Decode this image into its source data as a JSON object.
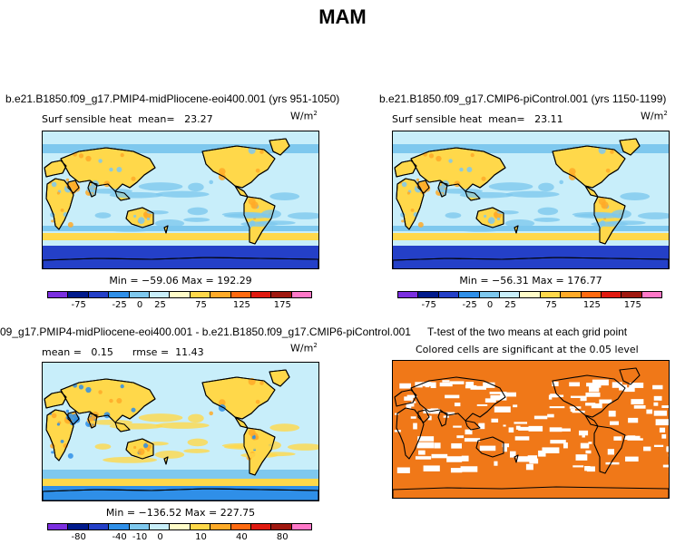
{
  "title": "MAM",
  "panels": [
    {
      "case": "b.e21.B1850.f09_g17.PMIP4-midPliocene-eoi400.001 (yrs 951-1050)",
      "var_label": "Surf sensible heat",
      "stat_label": "mean=",
      "stat_value": "23.27",
      "units": "W/m",
      "units_exp": "2",
      "minmax": "Min = −59.06  Max = 192.29",
      "ticks": [
        "-75",
        "-25",
        "0",
        "25",
        "75",
        "125",
        "175"
      ]
    },
    {
      "case": "b.e21.B1850.f09_g17.CMIP6-piControl.001 (yrs 1150-1199)",
      "var_label": "Surf sensible heat",
      "stat_label": "mean=",
      "stat_value": "23.11",
      "units": "W/m",
      "units_exp": "2",
      "minmax": "Min = −56.31  Max = 176.77",
      "ticks": [
        "-75",
        "-25",
        "0",
        "25",
        "75",
        "125",
        "175"
      ]
    },
    {
      "case": "09_g17.PMIP4-midPliocene-eoi400.001 - b.e21.B1850.f09_g17.CMIP6-piControl.001",
      "var_label": "mean =",
      "stat_label": "",
      "stat_value": "0.15",
      "rmse_label": "rmse =",
      "rmse_value": "11.43",
      "units": "W/m",
      "units_exp": "2",
      "minmax": "Min = −136.52  Max = 227.75",
      "ticks": [
        "-80",
        "-40",
        "-10",
        "0",
        "10",
        "40",
        "80"
      ]
    },
    {
      "case": "T-test of the two means at each grid point",
      "subtitle": "Colored cells are significant at the 0.05 level"
    }
  ],
  "colors": {
    "colorbar": [
      "#7b2fe0",
      "#001a8c",
      "#2440c8",
      "#2f8fe8",
      "#7ec8ee",
      "#c8eefa",
      "#fffcc8",
      "#ffd84a",
      "#ffaa28",
      "#ff6a10",
      "#e01a10",
      "#a01810",
      "#ff78c8"
    ],
    "ocean_abs": "#c8eefa",
    "land_warm": "#ffd84a",
    "land_hot": "#ffaa28",
    "cool": "#7ec8ee",
    "cold": "#2f8fe8",
    "antarctic": "#2440c8",
    "ttest_sig": "#f07818",
    "ttest_nonsig": "#ffffff"
  },
  "chart_data": [
    {
      "type": "heatmap",
      "title": "",
      "subtitle": "Surf sensible heat  mean= 23.27",
      "units": "W/m2",
      "min": -59.06,
      "max": 192.29,
      "levels": [
        -75,
        -25,
        0,
        25,
        75,
        125,
        175
      ]
    },
    {
      "type": "heatmap",
      "title": "",
      "subtitle": "Surf sensible heat  mean= 23.11",
      "units": "W/m2",
      "min": -56.31,
      "max": 176.77,
      "levels": [
        -75,
        -25,
        0,
        25,
        75,
        125,
        175
      ]
    },
    {
      "type": "heatmap",
      "title": "",
      "subtitle": "mean = 0.15  rmse = 11.43",
      "units": "W/m2",
      "min": -136.52,
      "max": 227.75,
      "levels": [
        -80,
        -40,
        -10,
        0,
        10,
        40,
        80
      ]
    },
    {
      "type": "heatmap",
      "title": "T-test of the two means at each grid point",
      "subtitle": "Colored cells are significant at the 0.05 level"
    }
  ]
}
